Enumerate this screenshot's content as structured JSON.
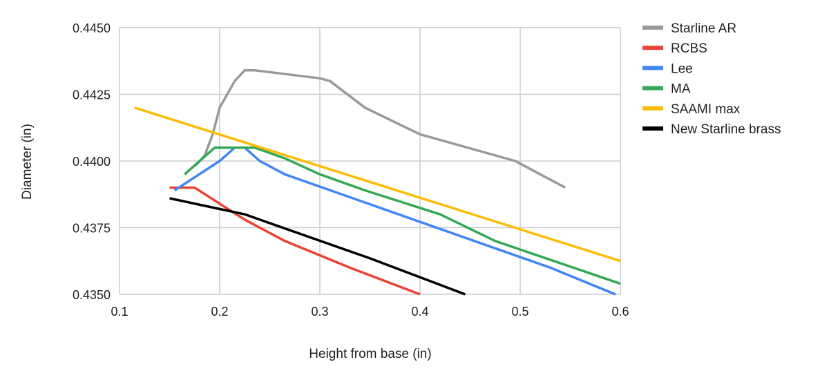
{
  "chart_data": {
    "type": "line",
    "title": "",
    "xlabel": "Height from base (in)",
    "ylabel": "Diameter (in)",
    "xlim": [
      0.1,
      0.6
    ],
    "ylim": [
      0.435,
      0.445
    ],
    "x_ticks": [
      "0.1",
      "0.2",
      "0.3",
      "0.4",
      "0.5",
      "0.6"
    ],
    "y_ticks": [
      "0.4350",
      "0.4375",
      "0.4400",
      "0.4425",
      "0.4450"
    ],
    "grid": true,
    "legend_position": "right",
    "series": [
      {
        "name": "Starline AR",
        "color": "#999999",
        "points": [
          [
            0.175,
            0.4398
          ],
          [
            0.185,
            0.4402
          ],
          [
            0.193,
            0.441
          ],
          [
            0.2,
            0.442
          ],
          [
            0.215,
            0.443
          ],
          [
            0.225,
            0.4434
          ],
          [
            0.235,
            0.4434
          ],
          [
            0.3,
            0.4431
          ],
          [
            0.31,
            0.443
          ],
          [
            0.345,
            0.442
          ],
          [
            0.4,
            0.441
          ],
          [
            0.495,
            0.44
          ],
          [
            0.545,
            0.439
          ]
        ]
      },
      {
        "name": "RCBS",
        "color": "#ea4335",
        "points": [
          [
            0.15,
            0.439
          ],
          [
            0.175,
            0.439
          ],
          [
            0.2,
            0.4384
          ],
          [
            0.225,
            0.4378
          ],
          [
            0.265,
            0.437
          ],
          [
            0.33,
            0.436
          ],
          [
            0.4,
            0.435
          ]
        ]
      },
      {
        "name": "Lee",
        "color": "#4285f4",
        "points": [
          [
            0.155,
            0.4389
          ],
          [
            0.2,
            0.44
          ],
          [
            0.215,
            0.4405
          ],
          [
            0.225,
            0.4405
          ],
          [
            0.24,
            0.44
          ],
          [
            0.265,
            0.4395
          ],
          [
            0.53,
            0.436
          ],
          [
            0.595,
            0.435
          ]
        ]
      },
      {
        "name": "MA",
        "color": "#34a853",
        "points": [
          [
            0.165,
            0.4395
          ],
          [
            0.195,
            0.4405
          ],
          [
            0.235,
            0.4405
          ],
          [
            0.265,
            0.4401
          ],
          [
            0.3,
            0.4395
          ],
          [
            0.345,
            0.4389
          ],
          [
            0.42,
            0.438
          ],
          [
            0.475,
            0.437
          ],
          [
            0.6,
            0.4354
          ]
        ]
      },
      {
        "name": "SAAMI max",
        "color": "#fbbc04",
        "points": [
          [
            0.115,
            0.442
          ],
          [
            0.6,
            0.43625
          ]
        ]
      },
      {
        "name": "New Starline brass",
        "color": "#000000",
        "points": [
          [
            0.15,
            0.4386
          ],
          [
            0.2,
            0.4382
          ],
          [
            0.225,
            0.438
          ],
          [
            0.35,
            0.43635
          ],
          [
            0.445,
            0.435
          ]
        ]
      }
    ]
  }
}
